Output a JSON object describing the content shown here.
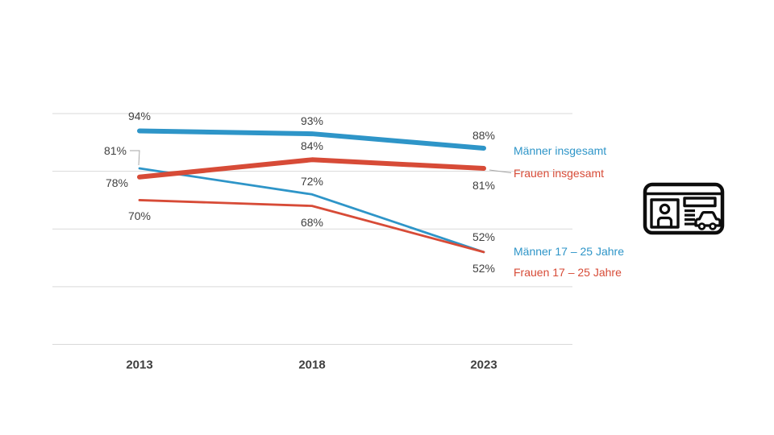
{
  "chart_data": {
    "type": "line",
    "title": "",
    "x_labels": [
      "2013",
      "2018",
      "2023"
    ],
    "ylim": [
      20,
      100
    ],
    "y_unit": "%",
    "grid": true,
    "gridline_values": [
      100,
      80,
      60,
      40,
      20
    ],
    "legend_position": "right-at-line-ends",
    "series": [
      {
        "name": "Männer insgesamt",
        "color": "#2e95c8",
        "weight": "thick",
        "values": [
          94,
          93,
          88
        ],
        "data_labels": [
          "94%",
          "93%",
          "88%"
        ]
      },
      {
        "name": "Frauen insgesamt",
        "color": "#d74b37",
        "weight": "thick",
        "values": [
          78,
          84,
          81
        ],
        "data_labels": [
          "78%",
          "84%",
          "81%"
        ]
      },
      {
        "name": "Männer 17 – 25 Jahre",
        "color": "#2e95c8",
        "weight": "thin",
        "values": [
          81,
          72,
          52
        ],
        "data_labels": [
          "81%",
          "72%",
          "52%"
        ]
      },
      {
        "name": "Frauen 17 – 25 Jahre",
        "color": "#d74b37",
        "weight": "thin",
        "values": [
          70,
          68,
          52
        ],
        "data_labels": [
          "70%",
          "68%",
          "52%"
        ]
      }
    ]
  },
  "colors": {
    "background": "#ffffff",
    "grid": "#d9d9d9",
    "leader_line": "#a6a6a6",
    "data_label": "#404040",
    "axis_label": "#3f3f3f",
    "icon": "#0d0d0d",
    "accent_blue": "#2e95c8",
    "accent_red": "#d74b37"
  },
  "icon": {
    "name": "drivers-license-icon"
  }
}
